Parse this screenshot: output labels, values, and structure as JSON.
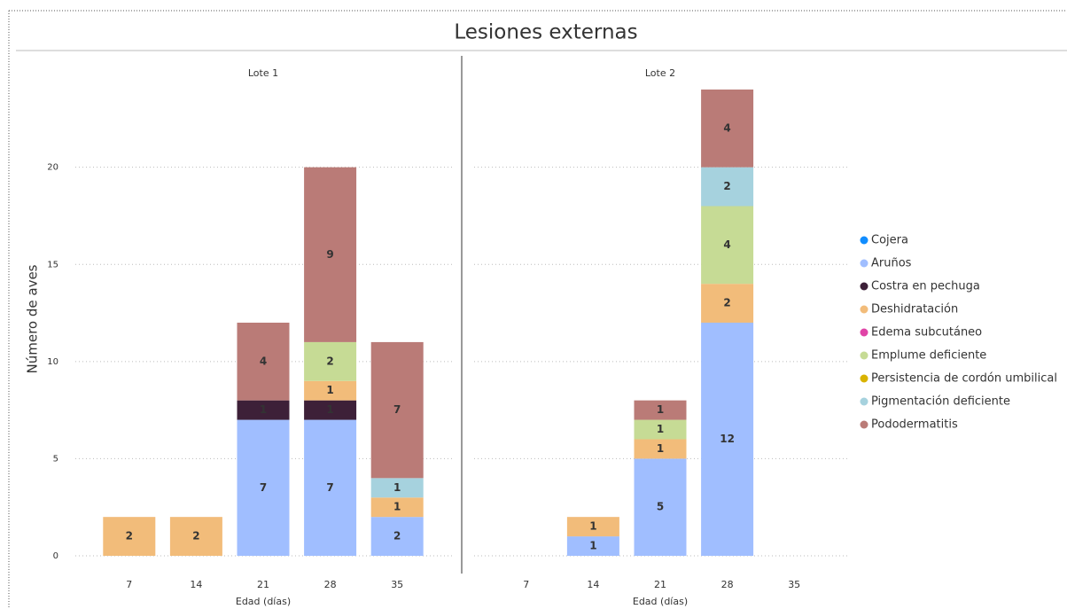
{
  "chart_data": {
    "type": "bar",
    "stacked": true,
    "title": "Lesiones externas",
    "ylabel": "Número de aves",
    "xlabel": "Edad (días)",
    "categories": [
      "7",
      "14",
      "21",
      "28",
      "35"
    ],
    "ylim": [
      0,
      24
    ],
    "yticks": [
      0,
      5,
      10,
      15,
      20
    ],
    "grid": true,
    "legend": "right",
    "series": [
      {
        "name": "Cojera",
        "color": "#118DFF"
      },
      {
        "name": "Aruños",
        "color": "#A0BEFF"
      },
      {
        "name": "Costra en pechuga",
        "color": "#3D2038"
      },
      {
        "name": "Deshidratación",
        "color": "#F2BC7A"
      },
      {
        "name": "Edema subcutáneo",
        "color": "#E044A7"
      },
      {
        "name": "Emplume deficiente",
        "color": "#C6DB95"
      },
      {
        "name": "Persistencia de cordón umbilical",
        "color": "#D9B300"
      },
      {
        "name": "Pigmentación deficiente",
        "color": "#A6D2DE"
      },
      {
        "name": "Pododermatitis",
        "color": "#BA7B77"
      }
    ],
    "panels": [
      {
        "title": "Lote 1",
        "values": [
          [
            null,
            null,
            null,
            null,
            null
          ],
          [
            null,
            null,
            7,
            7,
            2
          ],
          [
            null,
            null,
            1,
            1,
            null
          ],
          [
            2,
            2,
            null,
            1,
            1
          ],
          [
            null,
            null,
            null,
            null,
            null
          ],
          [
            null,
            null,
            null,
            2,
            null
          ],
          [
            null,
            null,
            null,
            null,
            null
          ],
          [
            null,
            null,
            null,
            null,
            1
          ],
          [
            null,
            null,
            4,
            9,
            7
          ]
        ]
      },
      {
        "title": "Lote 2",
        "values": [
          [
            null,
            null,
            null,
            null,
            null
          ],
          [
            null,
            1,
            5,
            12,
            null
          ],
          [
            null,
            null,
            null,
            null,
            null
          ],
          [
            null,
            1,
            1,
            2,
            null
          ],
          [
            null,
            null,
            null,
            null,
            null
          ],
          [
            null,
            null,
            1,
            4,
            null
          ],
          [
            null,
            null,
            null,
            null,
            null
          ],
          [
            null,
            null,
            null,
            2,
            null
          ],
          [
            null,
            null,
            1,
            4,
            null
          ]
        ]
      }
    ]
  }
}
